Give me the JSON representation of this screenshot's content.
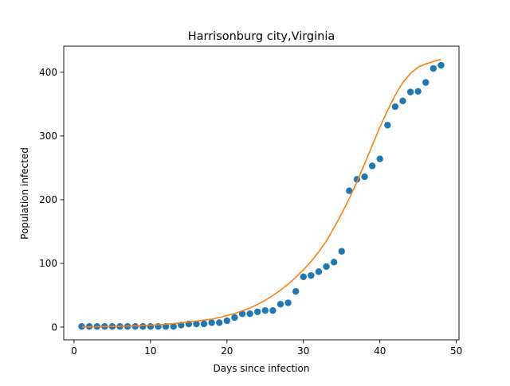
{
  "chart_data": {
    "type": "scatter",
    "title": "Harrisonburg city,Virginia",
    "xlabel": "Days since infection",
    "ylabel": "Population infected",
    "xlim": [
      -1.35,
      50.35
    ],
    "ylim": [
      -20,
      441
    ],
    "xticks": [
      0,
      10,
      20,
      30,
      40,
      50
    ],
    "yticks": [
      0,
      100,
      200,
      300,
      400
    ],
    "grid": false,
    "legend": "none",
    "series": [
      {
        "kind": "scatter",
        "color": "#1f77b4",
        "x": [
          1,
          2,
          3,
          4,
          5,
          6,
          7,
          8,
          9,
          10,
          11,
          12,
          13,
          14,
          15,
          16,
          17,
          18,
          19,
          20,
          21,
          22,
          23,
          24,
          25,
          26,
          27,
          28,
          29,
          30,
          31,
          32,
          33,
          34,
          35,
          36,
          37,
          38,
          39,
          40,
          41,
          42,
          43,
          44,
          45,
          46,
          47,
          48
        ],
        "y": [
          1,
          1,
          1,
          1,
          1,
          1,
          1,
          1,
          1,
          1,
          1,
          1,
          1,
          3,
          5,
          5,
          5,
          7,
          7,
          10,
          15,
          21,
          21,
          24,
          26,
          26,
          36,
          38,
          56,
          79,
          81,
          87,
          95,
          102,
          119,
          214,
          232,
          236,
          253,
          264,
          317,
          346,
          355,
          369,
          370,
          384,
          406,
          411
        ]
      },
      {
        "kind": "line",
        "color": "#ff7f0e",
        "x": [
          1,
          2,
          3,
          4,
          5,
          6,
          7,
          8,
          9,
          10,
          11,
          12,
          13,
          14,
          15,
          16,
          17,
          18,
          19,
          20,
          21,
          22,
          23,
          24,
          25,
          26,
          27,
          28,
          29,
          30,
          31,
          32,
          33,
          34,
          35,
          36,
          37,
          38,
          39,
          40,
          41,
          42,
          43,
          44,
          45,
          46,
          47,
          48
        ],
        "y": [
          0.4,
          0.5,
          0.6,
          0.8,
          1,
          1.2,
          1.5,
          1.9,
          2.4,
          3,
          3.6,
          4.5,
          5.5,
          6.7,
          8,
          9.5,
          11,
          12.5,
          15,
          18,
          21.5,
          25.5,
          30,
          35.5,
          42,
          49.5,
          58,
          67.5,
          78,
          90,
          103,
          118,
          135,
          156,
          178,
          202,
          228,
          256,
          285,
          314,
          340,
          364,
          384,
          398,
          408,
          413,
          417,
          420
        ]
      }
    ]
  }
}
